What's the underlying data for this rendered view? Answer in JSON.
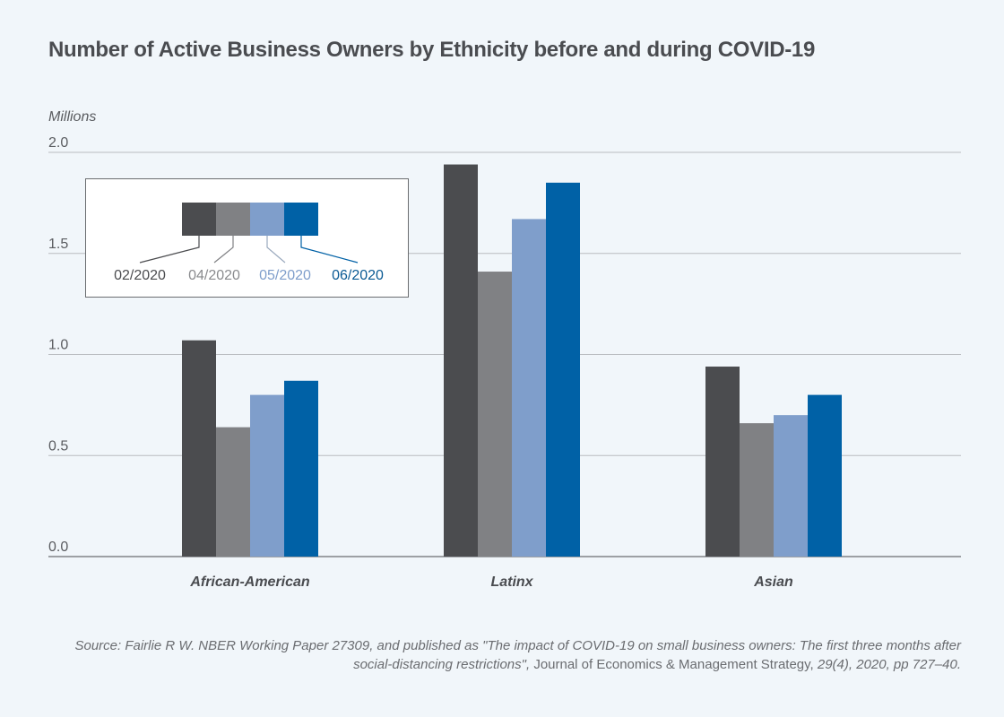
{
  "chart_data": {
    "type": "bar",
    "title": "Number of Active Business Owners by Ethnicity before and during COVID-19",
    "ylabel": "Millions",
    "xlabel": "",
    "ylim": [
      0,
      2.0
    ],
    "yticks": [
      0.0,
      0.5,
      1.0,
      1.5,
      2.0
    ],
    "ytick_labels": [
      "0.0",
      "0.5",
      "1.0",
      "1.5",
      "2.0"
    ],
    "grid": true,
    "legend_position": "top-left",
    "categories": [
      "African-American",
      "Latinx",
      "Asian"
    ],
    "series": [
      {
        "name": "02/2020",
        "color": "#4b4c4f",
        "label_color": "#4b4c4f",
        "values": [
          1.07,
          1.94,
          0.94
        ]
      },
      {
        "name": "04/2020",
        "color": "#808184",
        "label_color": "#8a8b8e",
        "values": [
          0.64,
          1.41,
          0.66
        ]
      },
      {
        "name": "05/2020",
        "color": "#7f9ecb",
        "label_color": "#7f9ecb",
        "values": [
          0.8,
          1.67,
          0.7
        ]
      },
      {
        "name": "06/2020",
        "color": "#0061a6",
        "label_color": "#0a5a94",
        "values": [
          0.87,
          1.85,
          0.8
        ]
      }
    ]
  },
  "source": {
    "part1": "Source: Fairlie R W. NBER Working Paper 27309, and published as \"The impact of COVID-19 on small business owners: The first three months after social-distancing restrictions\", ",
    "part2": "Journal of Economics & Management Strategy,",
    "part3": " 29(4), 2020, pp 727–40."
  }
}
